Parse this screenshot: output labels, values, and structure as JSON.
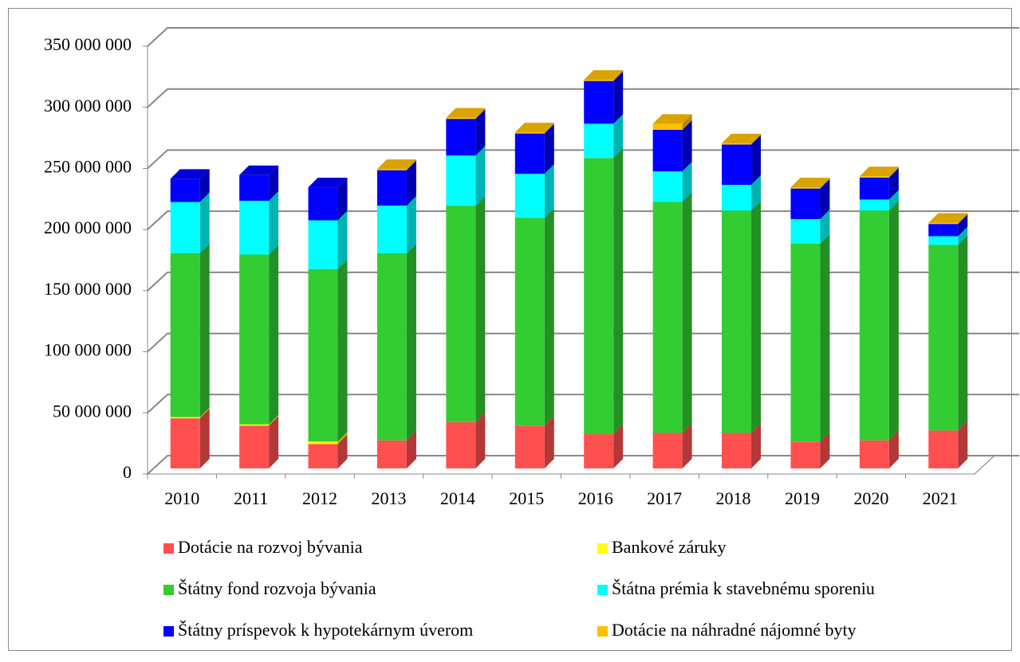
{
  "chart_data": {
    "type": "bar3d_stacked",
    "categories": [
      "2010",
      "2011",
      "2012",
      "2013",
      "2014",
      "2015",
      "2016",
      "2017",
      "2018",
      "2019",
      "2020",
      "2021"
    ],
    "series": [
      {
        "name": "Dotácie na rozvoj bývania",
        "color": "#ff5050",
        "values": [
          41000000,
          35000000,
          20000000,
          23000000,
          38000000,
          35000000,
          28000000,
          29000000,
          29000000,
          22000000,
          23000000,
          31000000
        ]
      },
      {
        "name": "Bankové záruky",
        "color": "#ffff00",
        "values": [
          1000000,
          1000000,
          2000000,
          0,
          0,
          0,
          0,
          0,
          0,
          0,
          0,
          0
        ]
      },
      {
        "name": "Štátny fond rozvoja bývania",
        "color": "#33cc33",
        "values": [
          134000000,
          139000000,
          141000000,
          153000000,
          177000000,
          170000000,
          226000000,
          189000000,
          182000000,
          162000000,
          188000000,
          152000000
        ]
      },
      {
        "name": "Štátna prémia k stavebnému sporeniu",
        "color": "#00ffff",
        "values": [
          42000000,
          44000000,
          40000000,
          39000000,
          41000000,
          36000000,
          28000000,
          25000000,
          21000000,
          20000000,
          9000000,
          7000000
        ]
      },
      {
        "name": "Štátny príspevok k hypotekárnym úverom",
        "color": "#0000ff",
        "values": [
          19000000,
          21000000,
          27000000,
          29000000,
          30000000,
          33000000,
          35000000,
          34000000,
          33000000,
          25000000,
          18000000,
          10000000
        ]
      },
      {
        "name": "Dotácie na náhradné nájomné byty",
        "color": "#ffc000",
        "values": [
          0,
          0,
          0,
          1000000,
          1000000,
          1000000,
          1000000,
          5000000,
          1000000,
          1000000,
          1000000,
          1000000
        ]
      }
    ],
    "ylim": [
      0,
      350000000
    ],
    "yticks": [
      0,
      {
        "value": 50000000,
        "label": "50 000 000"
      },
      {
        "value": 100000000,
        "label": "100 000 000"
      },
      {
        "value": 150000000,
        "label": "150 000 000"
      },
      {
        "value": 200000000,
        "label": "200 000 000"
      },
      {
        "value": 250000000,
        "label": "250 000 000"
      },
      {
        "value": 300000000,
        "label": "300 000 000"
      },
      {
        "value": 350000000,
        "label": "350 000 000"
      }
    ],
    "grid": true,
    "legend": "bottom"
  }
}
